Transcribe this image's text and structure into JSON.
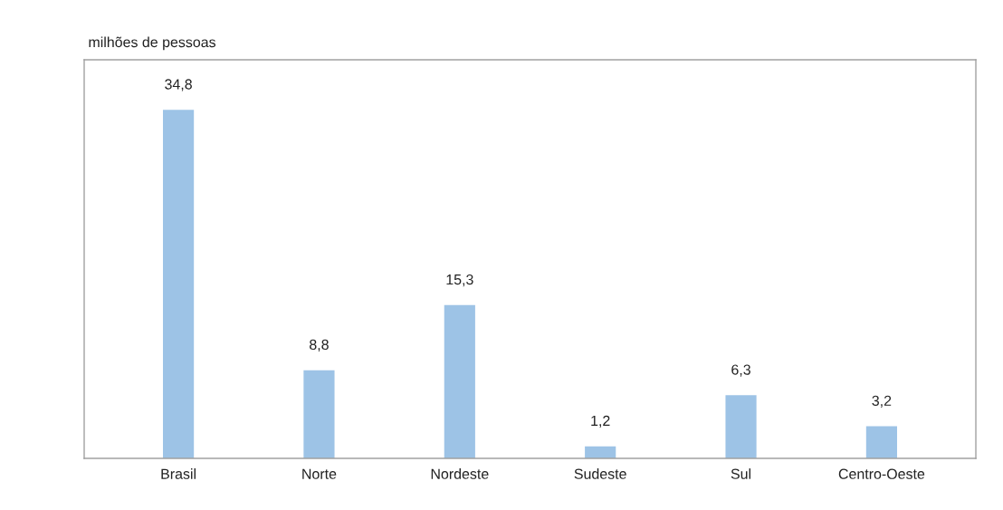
{
  "chart_data": {
    "type": "bar",
    "ylabel": "milhões de pessoas",
    "categories": [
      "Brasil",
      "Norte",
      "Nordeste",
      "Sudeste",
      "Sul",
      "Centro-Oeste"
    ],
    "values": [
      34.8,
      8.8,
      15.3,
      1.2,
      6.3,
      3.2
    ],
    "value_labels": [
      "34,8",
      "8,8",
      "15,3",
      "1,2",
      "6,3",
      "3,2"
    ],
    "color": "#9dc3e6",
    "ylim": [
      0,
      39.8
    ],
    "tick_labels": "x",
    "grid": false,
    "legend": false
  }
}
